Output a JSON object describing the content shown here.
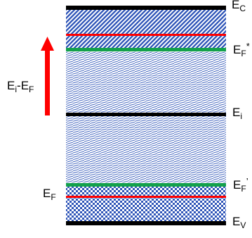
{
  "bands": [
    {
      "name": "conduction-band",
      "label": "E",
      "sub": "C",
      "mark": "",
      "color": "#000000"
    },
    {
      "name": "fermi-star-level",
      "label": "E",
      "sub": "F",
      "mark": "*",
      "color": "#13a14b"
    },
    {
      "name": "intrinsic-level",
      "label": "E",
      "sub": "i",
      "mark": "",
      "color": "#000000"
    },
    {
      "name": "fermi-prime-level",
      "label": "E",
      "sub": "F",
      "mark": "’",
      "color": "#13a14b"
    },
    {
      "name": "valence-band",
      "label": "E",
      "sub": "V",
      "mark": "",
      "color": "#000000"
    }
  ],
  "fermi_label": {
    "label": "E",
    "sub": "F"
  },
  "arrow_label": {
    "a": "E",
    "a_sub": "i",
    "sep": "-",
    "b": "E",
    "b_sub": "F"
  },
  "colors": {
    "arrow": "#ff0000",
    "red_line": "#ff0000",
    "green_line": "#13a14b",
    "hatch_blue": "#2f55b8",
    "band_edge": "#000000"
  }
}
